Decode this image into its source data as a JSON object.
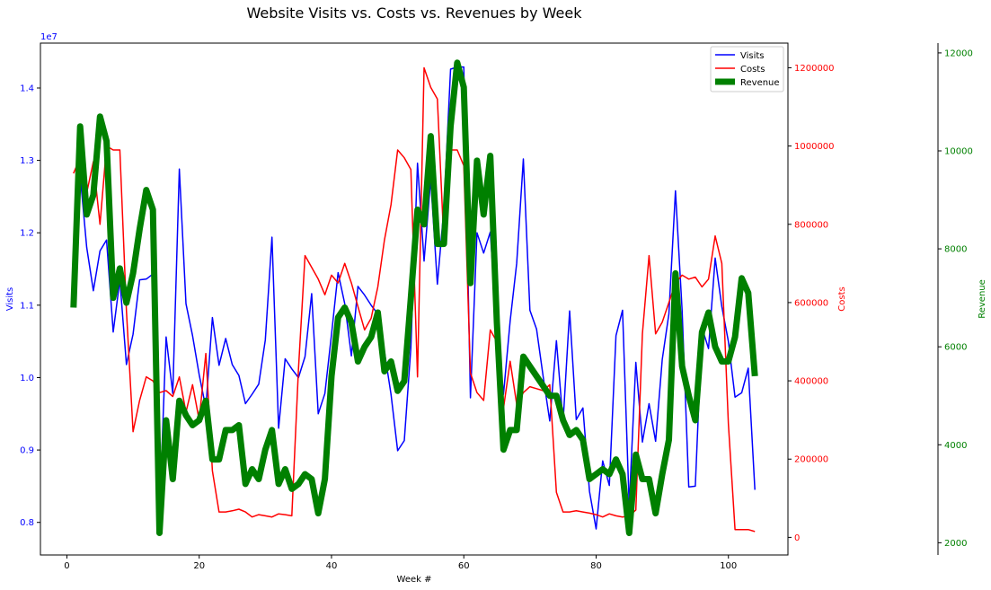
{
  "chart_data": {
    "type": "line",
    "title": "Website Visits vs. Costs vs. Revenues by Week",
    "xlabel": "Week #",
    "xlim": [
      -4,
      109
    ],
    "xticks": [
      0,
      20,
      40,
      60,
      80,
      100
    ],
    "axes": {
      "visits": {
        "label": "Visits",
        "color": "#0000ff",
        "side": "left",
        "ylim": [
          7550000,
          14620000
        ],
        "ticks": [
          8000000,
          9000000,
          10000000,
          11000000,
          12000000,
          13000000,
          14000000
        ],
        "tick_labels": [
          "0.8",
          "0.9",
          "1.0",
          "1.1",
          "1.2",
          "1.3",
          "1.4"
        ],
        "offset_text": "1e7"
      },
      "costs": {
        "label": "Costs",
        "color": "#ff0000",
        "side": "right",
        "ylim": [
          -45000,
          1263000
        ],
        "ticks": [
          0,
          200000,
          400000,
          600000,
          800000,
          1000000,
          1200000
        ],
        "tick_labels": [
          "0",
          "200000",
          "400000",
          "600000",
          "800000",
          "1000000",
          "1200000"
        ]
      },
      "revenue": {
        "label": "Revenue",
        "color": "#008000",
        "side": "right-outer",
        "ylim": [
          1750,
          12200
        ],
        "ticks": [
          2000,
          4000,
          6000,
          8000,
          10000,
          12000
        ],
        "tick_labels": [
          "2000",
          "4000",
          "6000",
          "8000",
          "10000",
          "12000"
        ]
      }
    },
    "x": [
      1,
      2,
      3,
      4,
      5,
      6,
      7,
      8,
      9,
      10,
      11,
      12,
      13,
      14,
      15,
      16,
      17,
      18,
      19,
      20,
      21,
      22,
      23,
      24,
      25,
      26,
      27,
      28,
      29,
      30,
      31,
      32,
      33,
      34,
      35,
      36,
      37,
      38,
      39,
      40,
      41,
      42,
      43,
      44,
      45,
      46,
      47,
      48,
      49,
      50,
      51,
      52,
      53,
      54,
      55,
      56,
      57,
      58,
      59,
      60,
      61,
      62,
      63,
      64,
      65,
      66,
      67,
      68,
      69,
      70,
      71,
      72,
      73,
      74,
      75,
      76,
      77,
      78,
      79,
      80,
      81,
      82,
      83,
      84,
      85,
      86,
      87,
      88,
      89,
      90,
      91,
      92,
      93,
      94,
      95,
      96,
      97,
      98,
      99,
      100,
      101,
      102,
      103,
      104
    ],
    "series": [
      {
        "name": "Visits",
        "axis": "visits",
        "color": "#0000ff",
        "width": 1.5,
        "values": [
          10990000,
          12800000,
          11800000,
          11200000,
          11750000,
          11900000,
          10630000,
          11350000,
          10180000,
          10600000,
          11350000,
          11360000,
          11430000,
          8100000,
          10560000,
          9780000,
          12880000,
          11020000,
          10580000,
          10040000,
          9580000,
          10830000,
          10170000,
          10540000,
          10180000,
          10030000,
          9640000,
          9770000,
          9910000,
          10520000,
          11940000,
          9300000,
          10260000,
          10120000,
          10000000,
          10290000,
          11160000,
          9500000,
          9780000,
          10600000,
          11450000,
          11020000,
          10300000,
          11260000,
          11140000,
          11000000,
          10880000,
          10360000,
          9770000,
          8990000,
          9130000,
          10410000,
          12960000,
          11610000,
          12740000,
          11290000,
          12340000,
          14260000,
          14290000,
          14290000,
          9720000,
          12000000,
          11720000,
          12010000,
          10670000,
          9770000,
          10780000,
          11580000,
          13020000,
          10930000,
          10670000,
          10010000,
          9400000,
          10510000,
          9380000,
          10920000,
          9420000,
          9580000,
          8430000,
          7910000,
          8850000,
          8510000,
          10580000,
          10930000,
          8230000,
          10210000,
          9110000,
          9640000,
          9120000,
          10250000,
          10880000,
          12580000,
          10930000,
          8490000,
          8500000,
          10690000,
          10400000,
          11650000,
          10980000,
          10500000,
          9730000,
          9790000,
          10130000,
          8450000
        ]
      },
      {
        "name": "Costs",
        "axis": "costs",
        "color": "#ff0000",
        "width": 1.5,
        "values": [
          930000,
          970000,
          880000,
          960000,
          800000,
          1000000,
          990000,
          990000,
          580000,
          270000,
          350000,
          410000,
          400000,
          370000,
          375000,
          360000,
          410000,
          320000,
          390000,
          300000,
          470000,
          170000,
          65000,
          65000,
          68000,
          72000,
          65000,
          52000,
          58000,
          55000,
          52000,
          60000,
          58000,
          55000,
          430000,
          720000,
          690000,
          660000,
          620000,
          670000,
          650000,
          700000,
          650000,
          590000,
          530000,
          560000,
          640000,
          760000,
          850000,
          990000,
          970000,
          940000,
          410000,
          1200000,
          1150000,
          1120000,
          750000,
          990000,
          990000,
          950000,
          420000,
          370000,
          350000,
          530000,
          500000,
          330000,
          450000,
          340000,
          370000,
          385000,
          380000,
          375000,
          390000,
          115000,
          65000,
          65000,
          68000,
          65000,
          62000,
          58000,
          52000,
          60000,
          55000,
          52000,
          55000,
          70000,
          520000,
          720000,
          520000,
          550000,
          600000,
          650000,
          670000,
          660000,
          665000,
          640000,
          660000,
          770000,
          700000,
          290000,
          20000,
          20000,
          20000,
          15000
        ]
      },
      {
        "name": "Revenue",
        "axis": "revenue",
        "color": "#008000",
        "width": 7,
        "values": [
          6800,
          10500,
          8700,
          9100,
          10700,
          10200,
          7000,
          7600,
          6900,
          7500,
          8400,
          9200,
          8800,
          2200,
          4500,
          3300,
          4900,
          4600,
          4400,
          4500,
          4900,
          3700,
          3700,
          4300,
          4300,
          4400,
          3200,
          3500,
          3300,
          3900,
          4300,
          3200,
          3500,
          3100,
          3200,
          3400,
          3300,
          2600,
          3300,
          5400,
          6600,
          6800,
          6500,
          5700,
          6000,
          6200,
          6700,
          5500,
          5700,
          5100,
          5300,
          7000,
          8800,
          8500,
          10300,
          8100,
          8100,
          10500,
          11800,
          11300,
          7300,
          9800,
          8700,
          9900,
          6500,
          3900,
          4300,
          4300,
          5800,
          5600,
          5400,
          5200,
          5000,
          5000,
          4500,
          4200,
          4300,
          4100,
          3300,
          3400,
          3500,
          3400,
          3700,
          3400,
          2200,
          3800,
          3300,
          3300,
          2600,
          3400,
          4100,
          7500,
          5600,
          5000,
          4500,
          6300,
          6700,
          6000,
          5700,
          5700,
          6200,
          7400,
          7100,
          5400
        ]
      }
    ],
    "legend": {
      "placement": "top-right",
      "entries": [
        "Visits",
        "Costs",
        "Revenue"
      ]
    }
  }
}
